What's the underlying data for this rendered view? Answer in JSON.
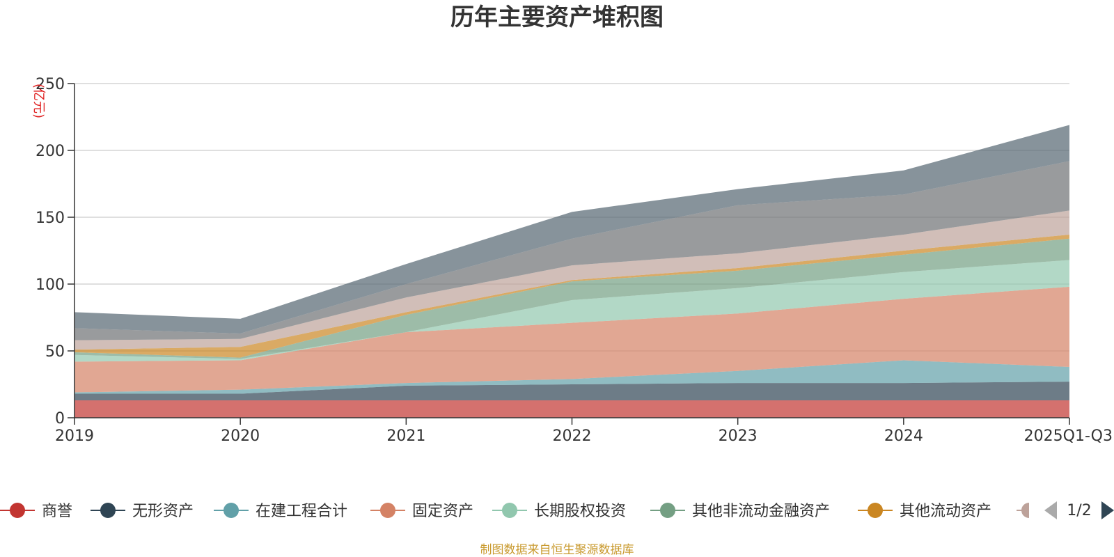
{
  "chart_data": {
    "type": "area",
    "stacked": true,
    "title": "历年主要资产堆积图",
    "unit_label": "(亿元)",
    "xlabel": "",
    "ylabel": "",
    "categories": [
      "2019",
      "2020",
      "2021",
      "2022",
      "2023",
      "2024",
      "2025Q1-Q3"
    ],
    "ylim": [
      0,
      250
    ],
    "yticks": [
      0,
      50,
      100,
      150,
      200,
      250
    ],
    "grid": true,
    "series": [
      {
        "name": "商誉",
        "color": "#c23531",
        "values": [
          13,
          13,
          13,
          13,
          13,
          13,
          13
        ]
      },
      {
        "name": "无形资产",
        "color": "#2f4554",
        "values": [
          5,
          5,
          11,
          12,
          13,
          13,
          14
        ]
      },
      {
        "name": "在建工程合计",
        "color": "#61a0a8",
        "values": [
          1,
          3,
          2,
          4,
          9,
          17,
          11
        ]
      },
      {
        "name": "固定资产",
        "color": "#d48265",
        "values": [
          23,
          22,
          38,
          42,
          43,
          46,
          60
        ]
      },
      {
        "name": "长期股权投资",
        "color": "#91c7ae",
        "values": [
          5,
          1,
          0,
          17,
          19,
          20,
          20
        ]
      },
      {
        "name": "其他非流动金融资产",
        "color": "#749f83",
        "values": [
          2,
          1,
          13,
          14,
          13,
          13,
          16
        ]
      },
      {
        "name": "其他流动资产",
        "color": "#ca8622",
        "values": [
          2,
          8,
          2,
          1,
          2,
          3,
          3
        ]
      },
      {
        "name": "",
        "color": "#bda29a",
        "values": [
          7,
          6,
          11,
          11,
          11,
          12,
          18
        ]
      },
      {
        "name": "",
        "color": "#6e7074",
        "values": [
          9,
          4,
          10,
          20,
          36,
          30,
          37
        ]
      },
      {
        "name": "",
        "color": "#546570",
        "values": [
          12,
          11,
          15,
          20,
          12,
          18,
          27
        ]
      }
    ]
  },
  "legend": {
    "page_indicator": "1/2"
  },
  "footer": {
    "source": "制图数据来自恒生聚源数据库"
  }
}
